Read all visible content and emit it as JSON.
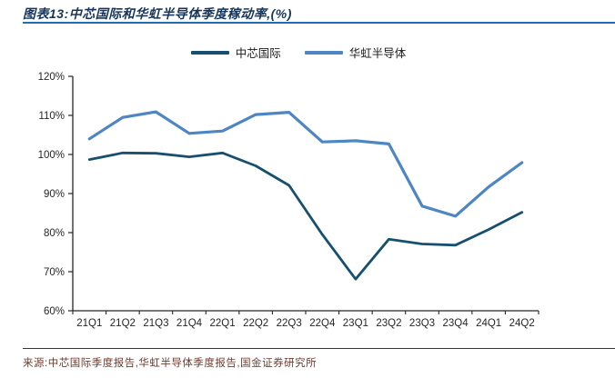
{
  "header": {
    "title": "图表13:中芯国际和华虹半导体季度稼动率,(%)"
  },
  "chart_data": {
    "type": "line",
    "title": "图表13:中芯国际和华虹半导体季度稼动率,(%)",
    "categories": [
      "21Q1",
      "21Q2",
      "21Q3",
      "21Q4",
      "22Q1",
      "22Q2",
      "22Q3",
      "22Q4",
      "23Q1",
      "23Q2",
      "23Q3",
      "23Q4",
      "24Q1",
      "24Q2"
    ],
    "series": [
      {
        "name": "中芯国际",
        "color": "#17506f",
        "stroke_width": 2.8,
        "values": [
          98.7,
          100.4,
          100.3,
          99.4,
          100.4,
          97.1,
          92.1,
          79.5,
          68.1,
          78.3,
          77.1,
          76.8,
          80.8,
          85.2
        ]
      },
      {
        "name": "华虹半导体",
        "color": "#4e86c4",
        "stroke_width": 3.2,
        "values": [
          104.0,
          109.5,
          110.9,
          105.4,
          106.0,
          110.2,
          110.8,
          103.2,
          103.5,
          102.7,
          86.8,
          84.2,
          91.7,
          97.9
        ]
      }
    ],
    "xlabel": "",
    "ylabel": "",
    "ylim": [
      60,
      120
    ],
    "ytick_step": 10,
    "ytick_labels": [
      "120%",
      "110%",
      "100%",
      "90%",
      "80%",
      "70%",
      "60%"
    ],
    "grid": false,
    "legend_position": "top"
  },
  "footer": {
    "source": "来源:中芯国际季度报告,华虹半导体季度报告,国金证券研究所"
  },
  "colors": {
    "title_text": "#16365c",
    "title_rule": "#1f6fb5",
    "axis": "#262626",
    "tick_text": "#262626",
    "source_text": "#6e3b2e",
    "footer_rule": "#1f3b57"
  }
}
